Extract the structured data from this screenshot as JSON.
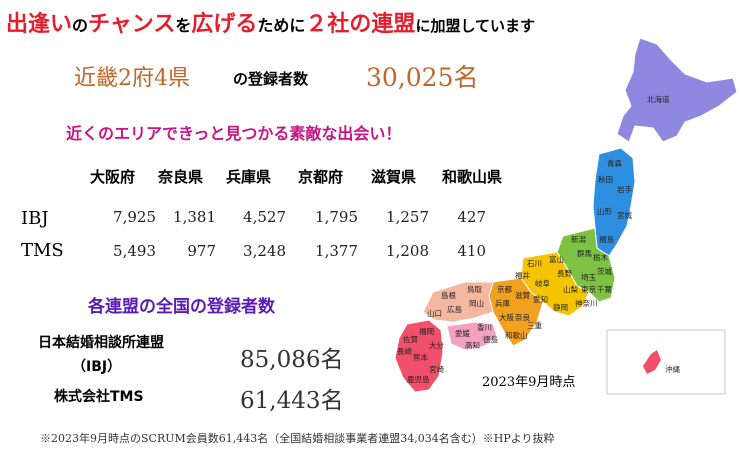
{
  "headline": {
    "part1": "出逢い",
    "part2": "の",
    "part3": "チャンス",
    "part4": "を",
    "part5": "広げる",
    "part6": "ために",
    "part7": "２社の連盟",
    "part8": "に加盟しています"
  },
  "region": {
    "label": "近畿2府4県",
    "sub": "の登録者数",
    "total": "30,025名"
  },
  "tagline": "近くのエリアできっと見つかる素敵な出会い！",
  "prefectures": [
    "大阪府",
    "奈良県",
    "兵庫県",
    "京都府",
    "滋賀県",
    "和歌山県"
  ],
  "rows": [
    {
      "label": "IBJ",
      "values": [
        "7,925",
        "1,381",
        "4,527",
        "1,795",
        "1,257",
        "427"
      ]
    },
    {
      "label": "TMS",
      "values": [
        "5,493",
        "977",
        "3,248",
        "1,377",
        "1,208",
        "410"
      ]
    }
  ],
  "national": {
    "title": "各連盟の全国の登録者数",
    "ibj_name": "日本結婚相談所連盟",
    "ibj_abbr": "（IBJ）",
    "ibj_count": "85,086名",
    "tms_name": "株式会社TMS",
    "tms_count": "61,443名"
  },
  "map": {
    "note": "2023年9月時点",
    "labels": {
      "hokkaido": "北海道",
      "aomori": "青森",
      "akita": "秋田",
      "iwate": "岩手",
      "yamagata": "山形",
      "miyagi": "宮城",
      "fukushima": "福島",
      "niigata": "新潟",
      "ishikawa": "石川",
      "toyama": "富山",
      "gunma": "群馬",
      "tochigi": "栃木",
      "nagano": "長野",
      "ibaraki": "茨城",
      "fukui": "福井",
      "gifu": "岐阜",
      "saitama": "埼玉",
      "tokyo": "東京",
      "chiba": "千葉",
      "kyoto": "京都",
      "shiga": "滋賀",
      "aichi": "愛知",
      "yamanashi": "山梨",
      "kanagawa": "神奈川",
      "shizuoka": "静岡",
      "tottori": "鳥取",
      "shimane": "島根",
      "hyogo": "兵庫",
      "okayama": "岡山",
      "hiroshima": "広島",
      "yamaguchi": "山口",
      "osaka": "大阪",
      "nara": "奈良",
      "mie": "三重",
      "kagawa": "香川",
      "tokushima": "徳島",
      "ehime": "愛媛",
      "kochi": "高知",
      "wakayama": "和歌山",
      "fukuoka": "福岡",
      "saga": "佐賀",
      "nagasaki": "長崎",
      "oita": "大分",
      "kumamoto": "熊本",
      "miyazaki": "宮崎",
      "kagoshima": "鹿児島",
      "okinawa": "沖縄"
    }
  },
  "colors": {
    "hokkaido": "#8f88e0",
    "tohoku": "#2e8fe0",
    "kanto": "#7dc242",
    "chubu": "#f4c400",
    "kinki": "#f2a020",
    "chugoku": "#f5b7a0",
    "shikoku": "#f4a0c0",
    "kyushu": "#f0506a"
  },
  "footnote": "※2023年9月時点のSCRUM会員数61,443名（全国結婚相談事業者連盟34,034名含む）※HPより抜粋"
}
